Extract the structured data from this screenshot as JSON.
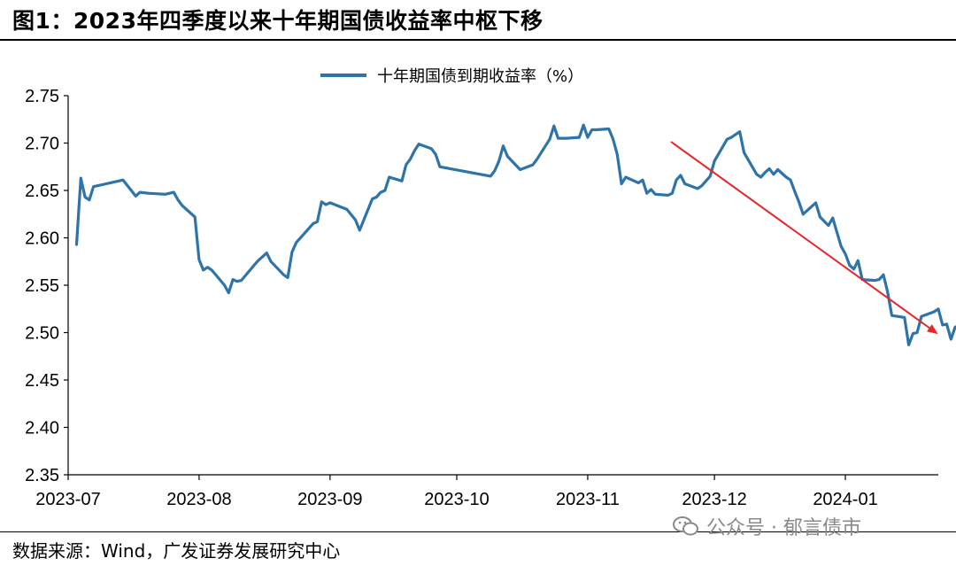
{
  "figure": {
    "title": "图1：2023年四季度以来十年期国债收益率中枢下移",
    "source": "数据来源：Wind，广发证券发展研究中心",
    "watermark": "公众号 · 郁言债市"
  },
  "chart_data": {
    "type": "line",
    "title": "",
    "xlabel": "",
    "ylabel": "",
    "legend_position": "top-center",
    "grid": false,
    "x_ticks": [
      "2023-07",
      "2023-08",
      "2023-09",
      "2023-10",
      "2023-11",
      "2023-12",
      "2024-01"
    ],
    "xlim": [
      "2023-07-01",
      "2024-01-23"
    ],
    "ylim": [
      2.35,
      2.75
    ],
    "y_ticks": [
      "2.35",
      "2.40",
      "2.45",
      "2.50",
      "2.55",
      "2.60",
      "2.65",
      "2.70",
      "2.75"
    ],
    "series": [
      {
        "name": "十年期国债到期收益率（%）",
        "color": "#2E74A8",
        "points": [
          [
            "2023-07-03",
            2.593
          ],
          [
            "2023-07-04",
            2.663
          ],
          [
            "2023-07-05",
            2.643
          ],
          [
            "2023-07-06",
            2.64
          ],
          [
            "2023-07-07",
            2.654
          ],
          [
            "2023-07-10",
            2.657
          ],
          [
            "2023-07-13",
            2.66
          ],
          [
            "2023-07-14",
            2.661
          ],
          [
            "2023-07-17",
            2.644
          ],
          [
            "2023-07-18",
            2.648
          ],
          [
            "2023-07-20",
            2.647
          ],
          [
            "2023-07-24",
            2.646
          ],
          [
            "2023-07-26",
            2.648
          ],
          [
            "2023-07-27",
            2.64
          ],
          [
            "2023-07-28",
            2.634
          ],
          [
            "2023-07-31",
            2.622
          ],
          [
            "2023-08-01",
            2.577
          ],
          [
            "2023-08-02",
            2.566
          ],
          [
            "2023-08-03",
            2.569
          ],
          [
            "2023-08-04",
            2.566
          ],
          [
            "2023-08-07",
            2.55
          ],
          [
            "2023-08-08",
            2.542
          ],
          [
            "2023-08-09",
            2.556
          ],
          [
            "2023-08-10",
            2.554
          ],
          [
            "2023-08-11",
            2.555
          ],
          [
            "2023-08-14",
            2.571
          ],
          [
            "2023-08-15",
            2.576
          ],
          [
            "2023-08-17",
            2.584
          ],
          [
            "2023-08-18",
            2.575
          ],
          [
            "2023-08-21",
            2.561
          ],
          [
            "2023-08-22",
            2.558
          ],
          [
            "2023-08-23",
            2.585
          ],
          [
            "2023-08-24",
            2.595
          ],
          [
            "2023-08-28",
            2.615
          ],
          [
            "2023-08-29",
            2.617
          ],
          [
            "2023-08-30",
            2.638
          ],
          [
            "2023-08-31",
            2.635
          ],
          [
            "2023-09-01",
            2.637
          ],
          [
            "2023-09-05",
            2.63
          ],
          [
            "2023-09-07",
            2.619
          ],
          [
            "2023-09-08",
            2.608
          ],
          [
            "2023-09-11",
            2.641
          ],
          [
            "2023-09-12",
            2.643
          ],
          [
            "2023-09-13",
            2.648
          ],
          [
            "2023-09-14",
            2.65
          ],
          [
            "2023-09-15",
            2.664
          ],
          [
            "2023-09-18",
            2.66
          ],
          [
            "2023-09-19",
            2.677
          ],
          [
            "2023-09-20",
            2.683
          ],
          [
            "2023-09-21",
            2.692
          ],
          [
            "2023-09-22",
            2.699
          ],
          [
            "2023-09-25",
            2.694
          ],
          [
            "2023-09-26",
            2.688
          ],
          [
            "2023-09-27",
            2.675
          ],
          [
            "2023-10-09",
            2.665
          ],
          [
            "2023-10-10",
            2.671
          ],
          [
            "2023-10-11",
            2.681
          ],
          [
            "2023-10-12",
            2.697
          ],
          [
            "2023-10-13",
            2.686
          ],
          [
            "2023-10-16",
            2.672
          ],
          [
            "2023-10-19",
            2.677
          ],
          [
            "2023-10-20",
            2.683
          ],
          [
            "2023-10-23",
            2.704
          ],
          [
            "2023-10-24",
            2.718
          ],
          [
            "2023-10-25",
            2.705
          ],
          [
            "2023-10-27",
            2.705
          ],
          [
            "2023-10-30",
            2.706
          ],
          [
            "2023-10-31",
            2.719
          ],
          [
            "2023-11-01",
            2.706
          ],
          [
            "2023-11-02",
            2.714
          ],
          [
            "2023-11-03",
            2.714
          ],
          [
            "2023-11-06",
            2.715
          ],
          [
            "2023-11-07",
            2.704
          ],
          [
            "2023-11-08",
            2.688
          ],
          [
            "2023-11-09",
            2.657
          ],
          [
            "2023-11-10",
            2.664
          ],
          [
            "2023-11-13",
            2.658
          ],
          [
            "2023-11-14",
            2.661
          ],
          [
            "2023-11-15",
            2.647
          ],
          [
            "2023-11-16",
            2.651
          ],
          [
            "2023-11-17",
            2.646
          ],
          [
            "2023-11-20",
            2.645
          ],
          [
            "2023-11-21",
            2.647
          ],
          [
            "2023-11-22",
            2.661
          ],
          [
            "2023-11-23",
            2.666
          ],
          [
            "2023-11-24",
            2.657
          ],
          [
            "2023-11-27",
            2.652
          ],
          [
            "2023-11-28",
            2.655
          ],
          [
            "2023-11-29",
            2.66
          ],
          [
            "2023-11-30",
            2.665
          ],
          [
            "2023-12-01",
            2.681
          ],
          [
            "2023-12-04",
            2.704
          ],
          [
            "2023-12-05",
            2.706
          ],
          [
            "2023-12-07",
            2.712
          ],
          [
            "2023-12-08",
            2.69
          ],
          [
            "2023-12-11",
            2.667
          ],
          [
            "2023-12-12",
            2.664
          ],
          [
            "2023-12-13",
            2.669
          ],
          [
            "2023-12-14",
            2.673
          ],
          [
            "2023-12-15",
            2.667
          ],
          [
            "2023-12-16",
            2.672
          ],
          [
            "2023-12-18",
            2.664
          ],
          [
            "2023-12-19",
            2.661
          ],
          [
            "2023-12-20",
            2.649
          ],
          [
            "2023-12-21",
            2.638
          ],
          [
            "2023-12-22",
            2.625
          ],
          [
            "2023-12-25",
            2.637
          ],
          [
            "2023-12-26",
            2.622
          ],
          [
            "2023-12-28",
            2.613
          ],
          [
            "2023-12-29",
            2.621
          ],
          [
            "2023-12-31",
            2.591
          ],
          [
            "2024-01-01",
            2.583
          ],
          [
            "2024-01-02",
            2.571
          ],
          [
            "2024-01-03",
            2.567
          ],
          [
            "2024-01-04",
            2.576
          ],
          [
            "2024-01-05",
            2.556
          ],
          [
            "2024-01-08",
            2.555
          ],
          [
            "2024-01-09",
            2.556
          ],
          [
            "2024-01-10",
            2.561
          ],
          [
            "2024-01-11",
            2.543
          ],
          [
            "2024-01-12",
            2.518
          ],
          [
            "2024-01-15",
            2.516
          ],
          [
            "2024-01-16",
            2.487
          ],
          [
            "2024-01-17",
            2.499
          ],
          [
            "2024-01-18",
            2.5
          ],
          [
            "2024-01-19",
            2.517
          ],
          [
            "2024-01-22",
            2.522
          ],
          [
            "2024-01-23",
            2.525
          ],
          [
            "2024-01-24",
            2.508
          ],
          [
            "2024-01-25",
            2.509
          ],
          [
            "2024-01-26",
            2.493
          ],
          [
            "2024-01-27",
            2.506
          ],
          [
            "2024-01-29",
            2.505
          ],
          [
            "2024-01-30",
            2.499
          ],
          [
            "2024-01-31",
            2.5
          ]
        ]
      }
    ]
  }
}
